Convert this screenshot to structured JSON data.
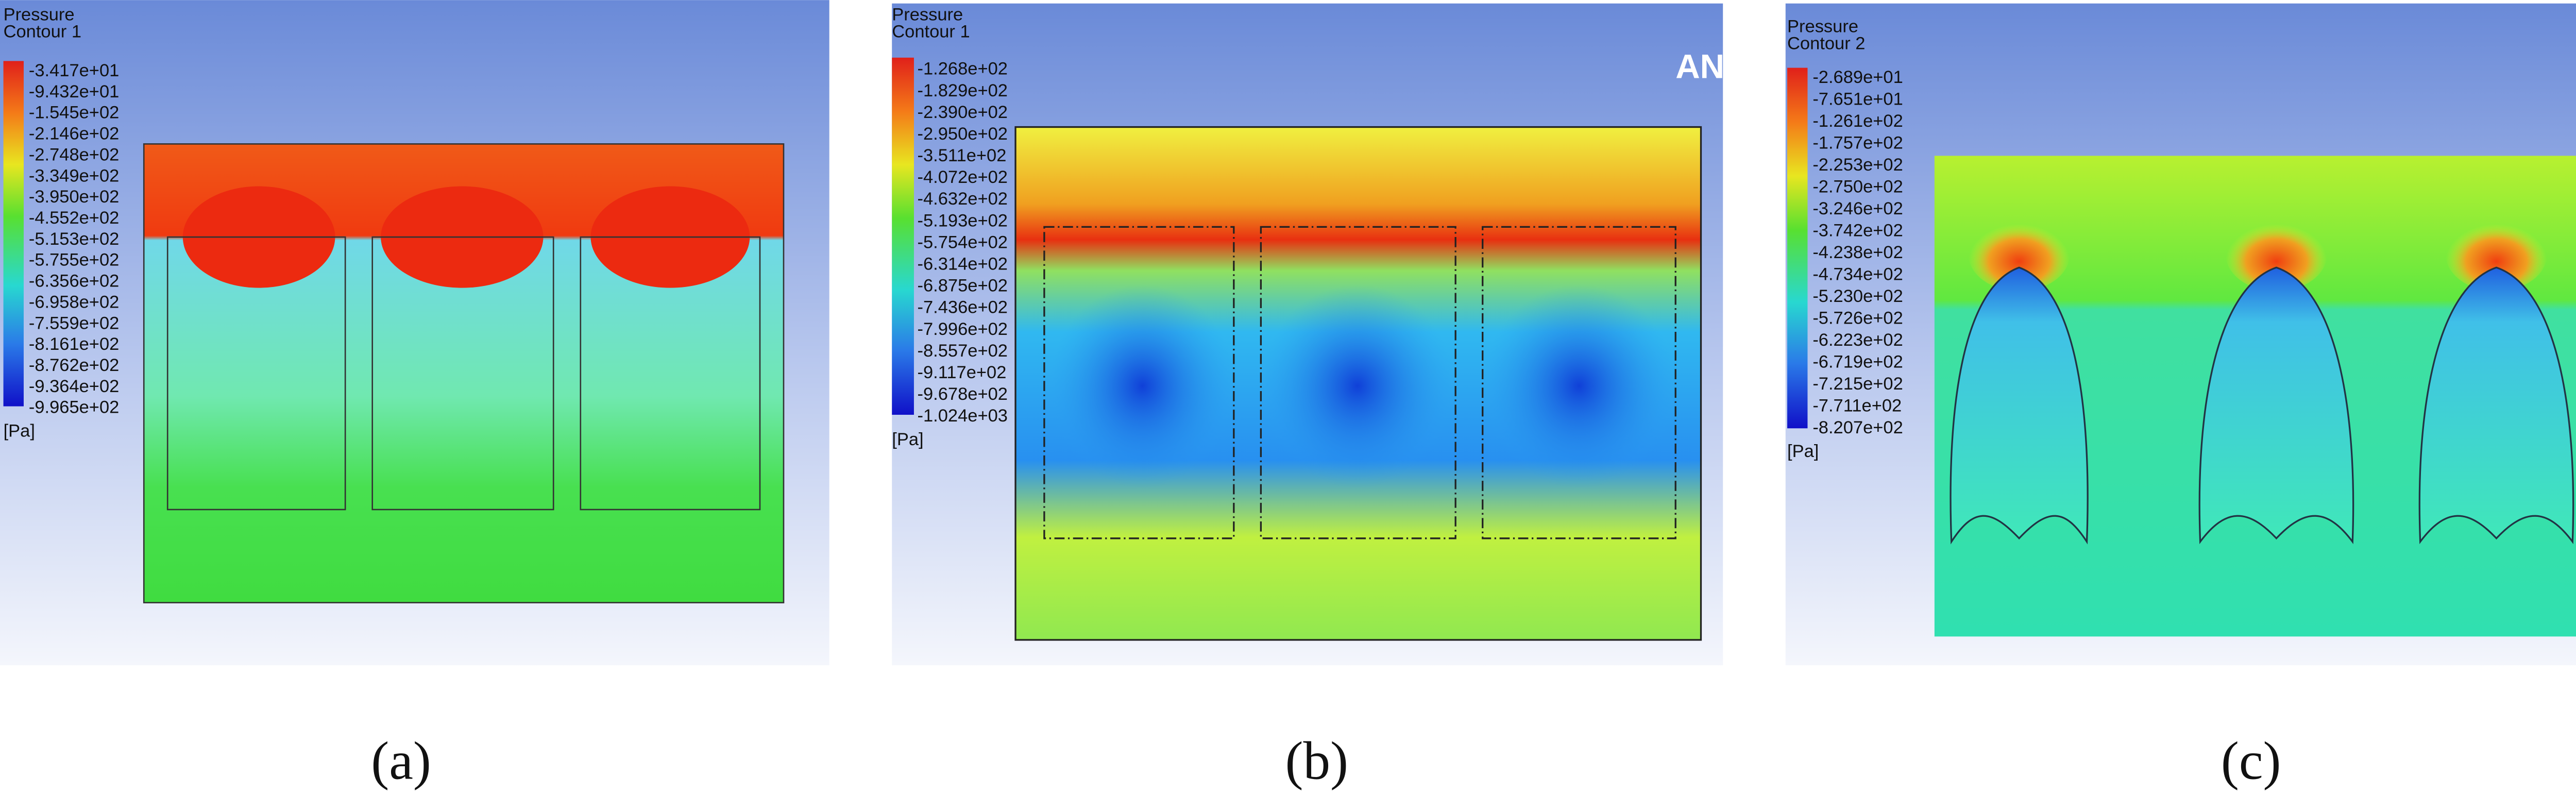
{
  "panels": [
    {
      "legend": {
        "title": [
          "Pressure",
          "Contour 1"
        ],
        "labels": [
          "-3.417e+01",
          "-9.432e+01",
          "-1.545e+02",
          "-2.146e+02",
          "-2.748e+02",
          "-3.349e+02",
          "-3.950e+02",
          "-4.552e+02",
          "-5.153e+02",
          "-5.755e+02",
          "-6.356e+02",
          "-6.958e+02",
          "-7.559e+02",
          "-8.161e+02",
          "-8.762e+02",
          "-9.364e+02",
          "-9.965e+02"
        ],
        "unit": "[Pa]"
      },
      "caption": "(a)"
    },
    {
      "legend": {
        "title": [
          "Pressure",
          "Contour 1"
        ],
        "labels": [
          "-1.268e+02",
          "-1.829e+02",
          "-2.390e+02",
          "-2.950e+02",
          "-3.511e+02",
          "-4.072e+02",
          "-4.632e+02",
          "-5.193e+02",
          "-5.754e+02",
          "-6.314e+02",
          "-6.875e+02",
          "-7.436e+02",
          "-7.996e+02",
          "-8.557e+02",
          "-9.117e+02",
          "-9.678e+02",
          "-1.024e+03"
        ],
        "unit": "[Pa]"
      },
      "caption": "(b)",
      "watermark": "AN"
    },
    {
      "legend": {
        "title": [
          "Pressure",
          "Contour 2"
        ],
        "labels": [
          "-2.689e+01",
          "-7.651e+01",
          "-1.261e+02",
          "-1.757e+02",
          "-2.253e+02",
          "-2.750e+02",
          "-3.246e+02",
          "-3.742e+02",
          "-4.238e+02",
          "-4.734e+02",
          "-5.230e+02",
          "-5.726e+02",
          "-6.223e+02",
          "-6.719e+02",
          "-7.215e+02",
          "-7.711e+02",
          "-8.207e+02"
        ],
        "unit": "[Pa]"
      },
      "caption": "(c)"
    }
  ]
}
